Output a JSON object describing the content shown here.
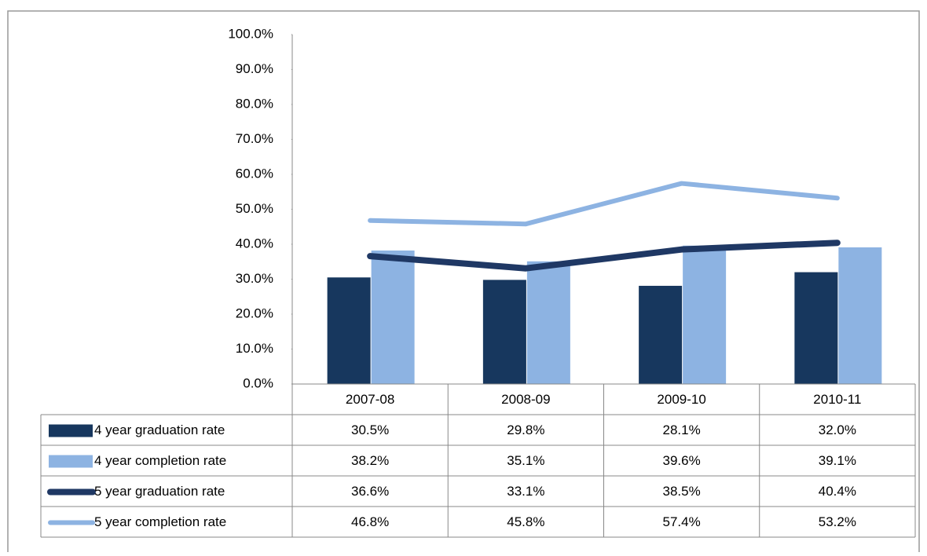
{
  "chart_data": {
    "type": "bar",
    "categories": [
      "2007-08",
      "2008-09",
      "2009-10",
      "2010-11"
    ],
    "series": [
      {
        "name": "4 year graduation rate",
        "type": "bar",
        "color": "#17375e",
        "values": [
          30.5,
          29.8,
          28.1,
          32.0
        ],
        "value_labels": [
          "30.5%",
          "29.8%",
          "28.1%",
          "32.0%"
        ]
      },
      {
        "name": "4 year completion rate",
        "type": "bar",
        "color": "#8db3e2",
        "values": [
          38.2,
          35.1,
          39.6,
          39.1
        ],
        "value_labels": [
          "38.2%",
          "35.1%",
          "39.6%",
          "39.1%"
        ]
      },
      {
        "name": "5 year graduation rate",
        "type": "line",
        "color": "#1f3864",
        "values": [
          36.6,
          33.1,
          38.5,
          40.4
        ],
        "value_labels": [
          "36.6%",
          "33.1%",
          "38.5%",
          "40.4%"
        ]
      },
      {
        "name": "5 year completion rate",
        "type": "line",
        "color": "#8db3e2",
        "values": [
          46.8,
          45.8,
          57.4,
          53.2
        ],
        "value_labels": [
          "46.8%",
          "45.8%",
          "57.4%",
          "53.2%"
        ]
      }
    ],
    "ylim": [
      0,
      100
    ],
    "yticks": [
      {
        "value": 0,
        "label": "0.0%"
      },
      {
        "value": 10,
        "label": "10.0%"
      },
      {
        "value": 20,
        "label": "20.0%"
      },
      {
        "value": 30,
        "label": "30.0%"
      },
      {
        "value": 40,
        "label": "40.0%"
      },
      {
        "value": 50,
        "label": "50.0%"
      },
      {
        "value": 60,
        "label": "60.0%"
      },
      {
        "value": 70,
        "label": "70.0%"
      },
      {
        "value": 80,
        "label": "80.0%"
      },
      {
        "value": 90,
        "label": "90.0%"
      },
      {
        "value": 100,
        "label": "100.0%"
      }
    ]
  }
}
